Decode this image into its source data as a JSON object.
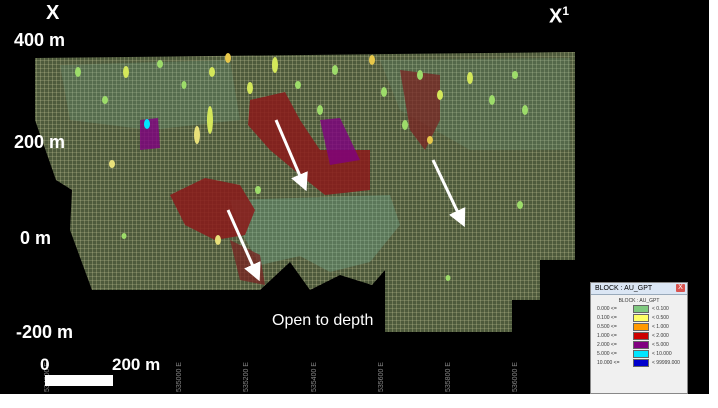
{
  "section": {
    "start_label": "X",
    "end_label": "X",
    "end_sup": "1"
  },
  "elevations": [
    "400 m",
    "200 m",
    "0 m",
    "-200 m"
  ],
  "annotation": "Open to depth",
  "scale": {
    "start": "0",
    "end": "200 m"
  },
  "eastings": [
    "534800 E",
    "535000 E",
    "535200 E",
    "535400 E",
    "535600 E",
    "535800 E",
    "536000 E"
  ],
  "legend": {
    "title": "BLOCK : AU_GPT",
    "header": "BLOCK : AU_GPT",
    "close": "X",
    "rows": [
      {
        "range": "0.000 <=",
        "limit": "< 0.100",
        "color": "#7fc97f"
      },
      {
        "range": "0.100 <=",
        "limit": "< 0.500",
        "color": "#ffff66"
      },
      {
        "range": "0.500 <=",
        "limit": "< 1.000",
        "color": "#ff9900"
      },
      {
        "range": "1.000 <=",
        "limit": "< 2.000",
        "color": "#cc0000"
      },
      {
        "range": "2.000 <=",
        "limit": "< 5.000",
        "color": "#800080"
      },
      {
        "range": "5.000 <=",
        "limit": "< 10.000",
        "color": "#00e5ff"
      },
      {
        "range": "10.000 <=",
        "limit": "< 99999.000",
        "color": "#0000cc"
      }
    ]
  }
}
